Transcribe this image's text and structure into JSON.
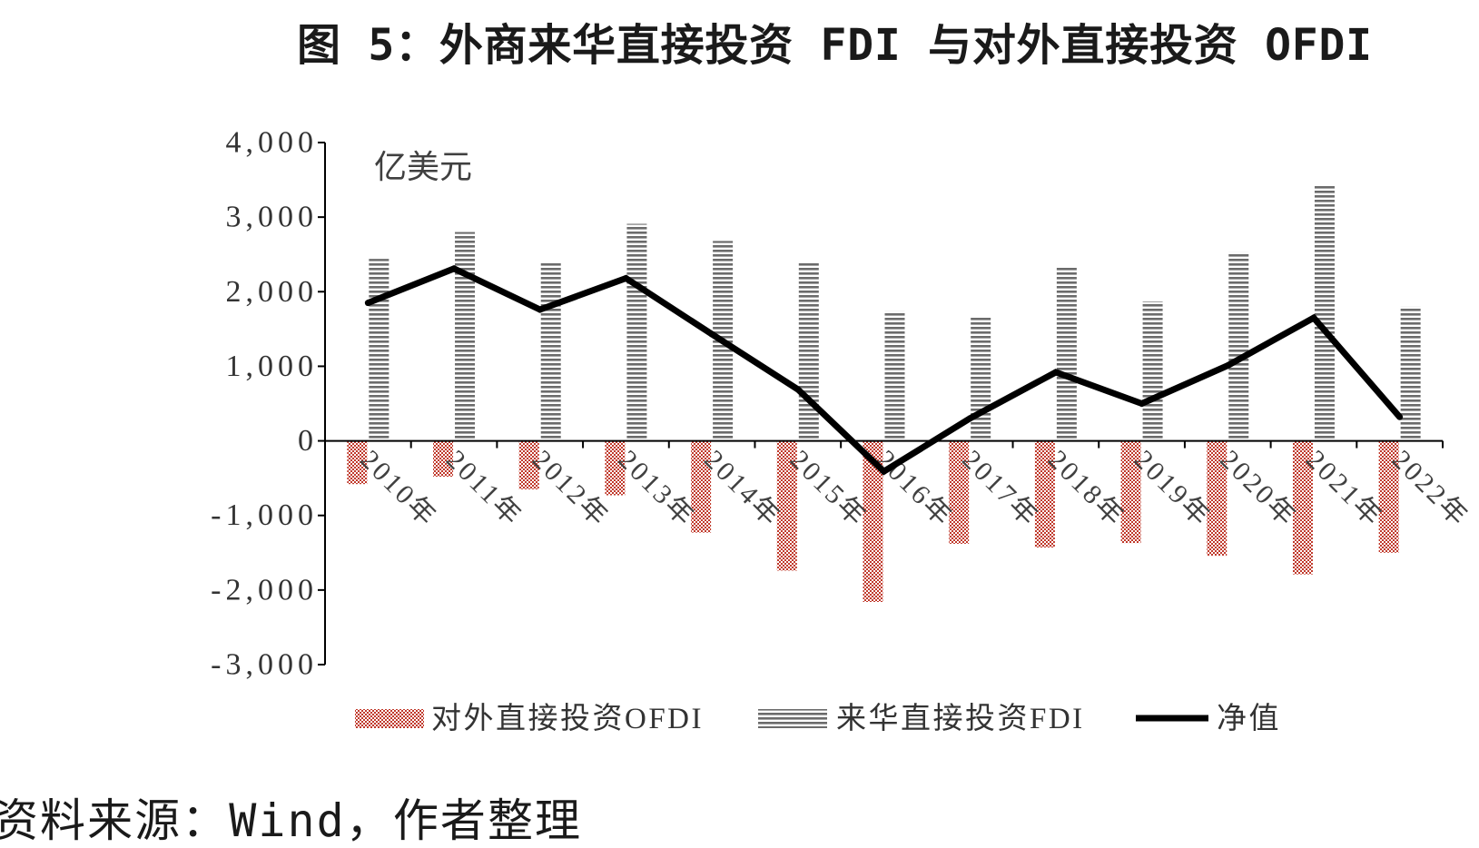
{
  "chart_data": {
    "type": "bar",
    "title": "图 5：外商来华直接投资 FDI 与对外直接投资 OFDI",
    "ylabel": "亿美元",
    "xlabel": "",
    "categories": [
      "2010年",
      "2011年",
      "2012年",
      "2013年",
      "2014年",
      "2015年",
      "2016年",
      "2017年",
      "2018年",
      "2019年",
      "2020年",
      "2021年",
      "2022年"
    ],
    "ylim": [
      -3000,
      4000
    ],
    "ytick_step": 1000,
    "ytick_labels": [
      "4,000",
      "3,000",
      "2,000",
      "1,000",
      "0",
      "-1,000",
      "-2,000",
      "-3,000"
    ],
    "grid": false,
    "legend": "bottom",
    "series": [
      {
        "name": "对外直接投资OFDI",
        "type": "bar",
        "pattern": "checker",
        "color": "#c0392b",
        "values": [
          -580,
          -480,
          -650,
          -730,
          -1230,
          -1740,
          -2160,
          -1380,
          -1430,
          -1370,
          -1540,
          -1790,
          -1500
        ]
      },
      {
        "name": "来华直接投资FDI",
        "type": "bar",
        "pattern": "hstripe",
        "color": "#6b6b6b",
        "values": [
          2440,
          2800,
          2400,
          2910,
          2680,
          2400,
          1740,
          1660,
          2320,
          1870,
          2530,
          3430,
          1800
        ]
      },
      {
        "name": "净值",
        "type": "line",
        "color": "#000000",
        "values": [
          1850,
          2310,
          1760,
          2180,
          1430,
          690,
          -410,
          300,
          920,
          500,
          1010,
          1650,
          320
        ]
      }
    ]
  },
  "source": "资料来源：Wind，作者整理"
}
